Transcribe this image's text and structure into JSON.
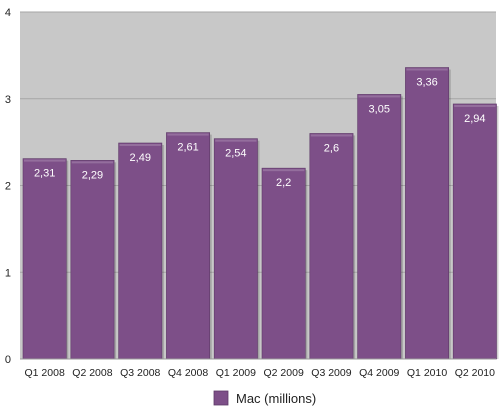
{
  "chart_data": {
    "type": "bar",
    "categories": [
      "Q1 2008",
      "Q2 2008",
      "Q3 2008",
      "Q4 2008",
      "Q1 2009",
      "Q2 2009",
      "Q3 2009",
      "Q4 2009",
      "Q1 2010",
      "Q2 2010"
    ],
    "series": [
      {
        "name": "Mac (millions)",
        "values": [
          2.31,
          2.29,
          2.49,
          2.61,
          2.54,
          2.2,
          2.6,
          3.05,
          3.36,
          2.94
        ],
        "labels": [
          "2,31",
          "2,29",
          "2,49",
          "2,61",
          "2,54",
          "2,2",
          "2,6",
          "3,05",
          "3,36",
          "2,94"
        ],
        "color": "#7d4f88"
      }
    ],
    "yticks": [
      "0",
      "1",
      "2",
      "3",
      "4"
    ],
    "ylim": [
      0,
      4
    ],
    "grid": true,
    "legend_position": "bottom-center",
    "plot_background": "#c8c8c8"
  }
}
